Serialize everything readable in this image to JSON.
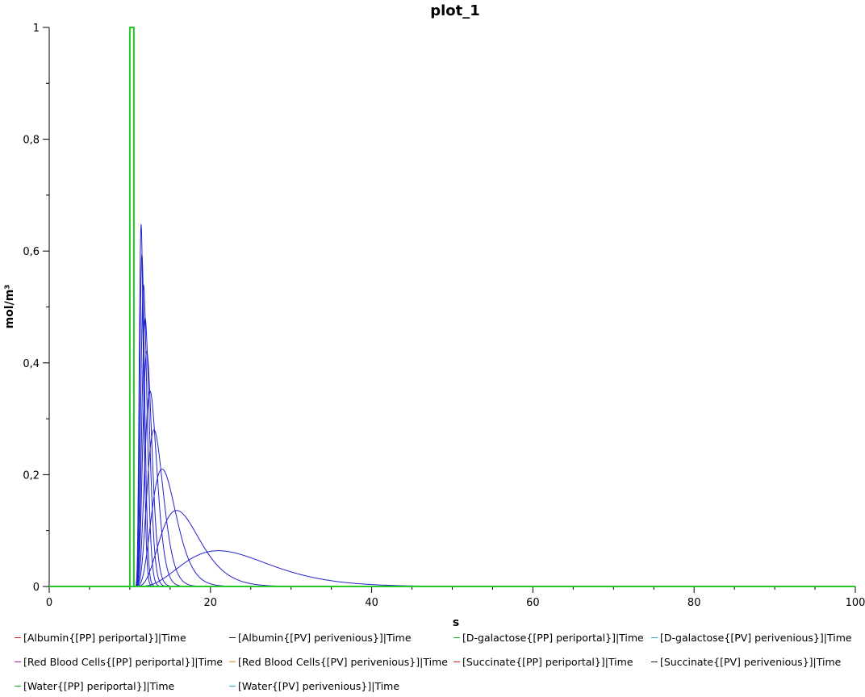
{
  "chart_data": {
    "type": "line",
    "title": "plot_1",
    "xlabel": "s",
    "ylabel": "mol/m³",
    "xlim": [
      0,
      100
    ],
    "ylim": [
      0,
      1
    ],
    "x_ticks": [
      "0",
      "20",
      "40",
      "60",
      "80",
      "100"
    ],
    "y_ticks": [
      "0",
      "0,2",
      "0,4",
      "0,6",
      "0,8",
      "1"
    ],
    "grid": false,
    "legend_position": "bottom",
    "input_pulse": {
      "color": "#22cc22",
      "start": 10,
      "end": 10.5,
      "value": 1
    },
    "peaks": [
      {
        "t": 11.4,
        "h": 0.648
      },
      {
        "t": 11.5,
        "h": 0.595
      },
      {
        "t": 11.7,
        "h": 0.54
      },
      {
        "t": 11.9,
        "h": 0.48
      },
      {
        "t": 12.1,
        "h": 0.42
      },
      {
        "t": 12.5,
        "h": 0.35
      },
      {
        "t": 13.0,
        "h": 0.28
      },
      {
        "t": 14.0,
        "h": 0.21
      },
      {
        "t": 15.8,
        "h": 0.136
      },
      {
        "t": 21.0,
        "h": 0.064
      }
    ],
    "series_color": "#2222cc",
    "legend": [
      {
        "label": "[Albumin{[PP] periportal}]|Time",
        "color": "#cc2222"
      },
      {
        "label": "[Albumin{[PV] perivenious}]|Time",
        "color": "#222222"
      },
      {
        "label": "[D-galactose{[PP] periportal}]|Time",
        "color": "#22aa22"
      },
      {
        "label": "[D-galactose{[PV] perivenious}]|Time",
        "color": "#22aacc"
      },
      {
        "label": "[Red Blood Cells{[PP] periportal}]|Time",
        "color": "#aa22aa"
      },
      {
        "label": "[Red Blood Cells{[PV] perivenious}]|Time",
        "color": "#dd9900"
      },
      {
        "label": "[Succinate{[PP] periportal}]|Time",
        "color": "#cc2222"
      },
      {
        "label": "[Succinate{[PV] perivenious}]|Time",
        "color": "#222222"
      },
      {
        "label": "[Water{[PP] periportal}]|Time",
        "color": "#22aa22"
      },
      {
        "label": "[Water{[PV] perivenious}]|Time",
        "color": "#22aacc"
      }
    ]
  }
}
